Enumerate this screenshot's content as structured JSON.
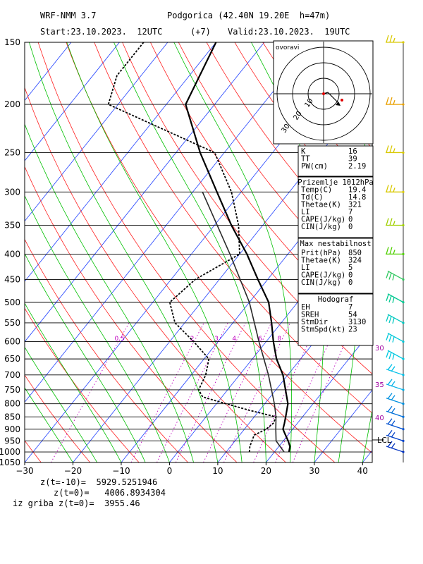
{
  "header": {
    "model": "WRF-NMM 3.7",
    "station": "Podgorica (42.40N 19.20E  h=47m)",
    "start": "Start:23.10.2023.  12UTC",
    "lead": "(+7)",
    "valid": "Valid:23.10.2023.  19UTC"
  },
  "chart_data": {
    "type": "skew-t log-p",
    "pressure_ticks": [
      "150",
      "200",
      "250",
      "300",
      "350",
      "400",
      "450",
      "500",
      "550",
      "600",
      "650",
      "700",
      "750",
      "800",
      "850",
      "900",
      "950",
      "1000",
      "1050"
    ],
    "temperature_ticks": [
      "−30",
      "−20",
      "−10",
      "0",
      "10",
      "20",
      "30",
      "40"
    ],
    "mixing_ratio_labels": [
      "0.5",
      "2",
      "3",
      "4",
      "6",
      "8"
    ],
    "wind_speed_labels": [
      "30",
      "35",
      "40"
    ],
    "lcl_label": "LCL",
    "xlim": [
      -30,
      42
    ],
    "ylim": [
      1050,
      150
    ],
    "temperature_profile": [
      {
        "p": 1000,
        "t": 23.0
      },
      {
        "p": 975,
        "t": 22.3
      },
      {
        "p": 950,
        "t": 21.0
      },
      {
        "p": 925,
        "t": 19.5
      },
      {
        "p": 900,
        "t": 18.0
      },
      {
        "p": 875,
        "t": 17.3
      },
      {
        "p": 850,
        "t": 16.5
      },
      {
        "p": 800,
        "t": 14.8
      },
      {
        "p": 750,
        "t": 12.0
      },
      {
        "p": 700,
        "t": 9.0
      },
      {
        "p": 650,
        "t": 5.0
      },
      {
        "p": 600,
        "t": 1.5
      },
      {
        "p": 550,
        "t": -2.0
      },
      {
        "p": 500,
        "t": -6.0
      },
      {
        "p": 450,
        "t": -12.0
      },
      {
        "p": 400,
        "t": -18.5
      },
      {
        "p": 350,
        "t": -26.5
      },
      {
        "p": 300,
        "t": -35.0
      },
      {
        "p": 250,
        "t": -45.0
      },
      {
        "p": 200,
        "t": -56.0
      },
      {
        "p": 150,
        "t": -60.0
      }
    ],
    "dewpoint_profile": [
      {
        "p": 1000,
        "t": 14.8
      },
      {
        "p": 975,
        "t": 14.0
      },
      {
        "p": 950,
        "t": 13.5
      },
      {
        "p": 925,
        "t": 13.0
      },
      {
        "p": 900,
        "t": 14.5
      },
      {
        "p": 875,
        "t": 15.0
      },
      {
        "p": 850,
        "t": 14.5
      },
      {
        "p": 825,
        "t": 8.0
      },
      {
        "p": 800,
        "t": 2.0
      },
      {
        "p": 775,
        "t": -4.0
      },
      {
        "p": 750,
        "t": -6.0
      },
      {
        "p": 700,
        "t": -7.0
      },
      {
        "p": 650,
        "t": -9.0
      },
      {
        "p": 600,
        "t": -15.0
      },
      {
        "p": 550,
        "t": -22.0
      },
      {
        "p": 500,
        "t": -26.5
      },
      {
        "p": 450,
        "t": -25.0
      },
      {
        "p": 400,
        "t": -20.0
      },
      {
        "p": 350,
        "t": -25.0
      },
      {
        "p": 300,
        "t": -32.0
      },
      {
        "p": 250,
        "t": -42.0
      },
      {
        "p": 200,
        "t": -72.0
      },
      {
        "p": 175,
        "t": -75.0
      },
      {
        "p": 150,
        "t": -75.0
      }
    ],
    "parcel_profile": [
      {
        "p": 1000,
        "t": 22.0
      },
      {
        "p": 950,
        "t": 18.5
      },
      {
        "p": 900,
        "t": 16.5
      },
      {
        "p": 850,
        "t": 14.5
      },
      {
        "p": 800,
        "t": 12.0
      },
      {
        "p": 700,
        "t": 6.0
      },
      {
        "p": 600,
        "t": -1.5
      },
      {
        "p": 500,
        "t": -10.0
      },
      {
        "p": 400,
        "t": -22.0
      },
      {
        "p": 300,
        "t": -38.0
      }
    ],
    "wind_barbs": [
      {
        "p": 150,
        "color": "#d8c800"
      },
      {
        "p": 200,
        "color": "#e8a000"
      },
      {
        "p": 250,
        "color": "#d8c800"
      },
      {
        "p": 300,
        "color": "#d8c800"
      },
      {
        "p": 350,
        "color": "#a0d000"
      },
      {
        "p": 400,
        "color": "#50d000"
      },
      {
        "p": 450,
        "color": "#30c860"
      },
      {
        "p": 500,
        "color": "#00c890"
      },
      {
        "p": 550,
        "color": "#00c8c0"
      },
      {
        "p": 600,
        "color": "#00c8d8"
      },
      {
        "p": 650,
        "color": "#00c8e0"
      },
      {
        "p": 700,
        "color": "#00c0e8"
      },
      {
        "p": 750,
        "color": "#00b0e8"
      },
      {
        "p": 800,
        "color": "#0090e0"
      },
      {
        "p": 850,
        "color": "#0070d8"
      },
      {
        "p": 900,
        "color": "#0050d0"
      },
      {
        "p": 950,
        "color": "#0040c8"
      },
      {
        "p": 1000,
        "color": "#0030c0"
      }
    ]
  },
  "hodograph": {
    "label": "ovoravi",
    "speed_labels": [
      "10",
      "20",
      "30"
    ]
  },
  "indices": {
    "rows": [
      {
        "k": "K",
        "v": "16"
      },
      {
        "k": "TT",
        "v": "39"
      },
      {
        "k": "PW(cm)",
        "v": "2.19"
      }
    ]
  },
  "surface": {
    "title": "Prizemlje 1012hPa",
    "rows": [
      {
        "k": "Temp(C)",
        "v": "19.4"
      },
      {
        "k": "Td(C)",
        "v": "14.8"
      },
      {
        "k": "Thetae(K)",
        "v": "321"
      },
      {
        "k": "LI",
        "v": "7"
      },
      {
        "k": "CAPE(J/kg)",
        "v": "0"
      },
      {
        "k": "CIN(J/kg)",
        "v": "0"
      }
    ]
  },
  "max_instability": {
    "title": "Max nestabilnost",
    "rows": [
      {
        "k": "Prit(hPa)",
        "v": "850"
      },
      {
        "k": "Thetae(K)",
        "v": "324"
      },
      {
        "k": "LI",
        "v": "5"
      },
      {
        "k": "CAPE(J/kg)",
        "v": "0"
      },
      {
        "k": "CIN(J/kg)",
        "v": "0"
      }
    ]
  },
  "hodograph_stats": {
    "title": "Hodograf",
    "rows": [
      {
        "k": "EH",
        "v": "7"
      },
      {
        "k": "SREH",
        "v": "54"
      },
      {
        "k": "StmDir",
        "v": "3130"
      },
      {
        "k": "StmSpd(kt)",
        "v": "23"
      }
    ]
  },
  "footer": {
    "line1": "z(t=-10)=  5929.5251946",
    "line2": "z(t=0)=   4006.8934304",
    "line3": "iz griba z(t=0)=  3955.46"
  },
  "colors": {
    "isobar": "#000000",
    "isotherm": "#2040ff",
    "dry_adiabat": "#ff2020",
    "moist_adiabat": "#00c000",
    "mixing_ratio": "#c000c0",
    "profile": "#000000"
  }
}
